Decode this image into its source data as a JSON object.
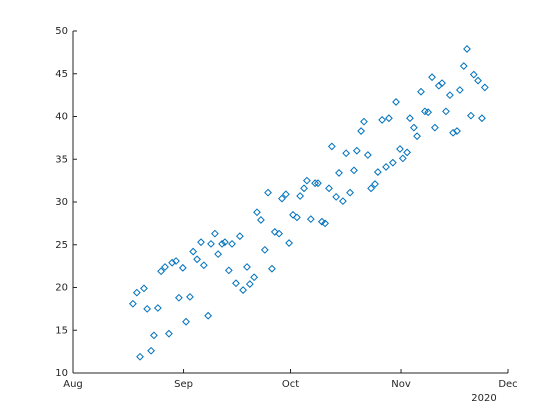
{
  "chart_data": {
    "type": "scatter",
    "x_secondary_label": "2020",
    "xlim": [
      0,
      122
    ],
    "xticks": [
      {
        "value": 0,
        "label": "Aug"
      },
      {
        "value": 31,
        "label": "Sep"
      },
      {
        "value": 61,
        "label": "Oct"
      },
      {
        "value": 92,
        "label": "Nov"
      },
      {
        "value": 122,
        "label": "Dec"
      }
    ],
    "ylim": [
      10,
      50
    ],
    "yticks": [
      10,
      15,
      20,
      25,
      30,
      35,
      40,
      45,
      50
    ],
    "color": "#0072bd",
    "marker": "diamond",
    "x": [
      16.8,
      17.9,
      18.8,
      19.9,
      20.8,
      21.9,
      22.7,
      23.8,
      24.7,
      25.8,
      26.9,
      27.8,
      28.9,
      29.7,
      30.8,
      31.7,
      32.8,
      33.7,
      34.8,
      35.9,
      36.7,
      37.9,
      38.7,
      39.8,
      40.7,
      41.8,
      42.6,
      43.7,
      44.6,
      45.7,
      46.8,
      47.7,
      48.8,
      49.6,
      50.8,
      51.6,
      52.7,
      53.8,
      54.7,
      55.8,
      56.6,
      57.8,
      58.6,
      59.7,
      60.6,
      61.7,
      62.8,
      63.7,
      64.8,
      65.6,
      66.7,
      67.9,
      68.7,
      69.8,
      70.7,
      71.8,
      72.6,
      73.8,
      74.6,
      75.7,
      76.6,
      77.7,
      78.8,
      79.6,
      80.8,
      81.6,
      82.7,
      83.6,
      84.7,
      85.5,
      86.7,
      87.8,
      88.6,
      89.7,
      90.6,
      91.7,
      92.5,
      93.7,
      94.5,
      95.6,
      96.5,
      97.6,
      98.7,
      99.6,
      100.7,
      101.5,
      102.6,
      103.5,
      104.6,
      105.7,
      106.6,
      107.7,
      108.5,
      109.6,
      110.5,
      111.6,
      112.4,
      113.6,
      114.7,
      115.5
    ],
    "y": [
      18.1,
      19.4,
      11.9,
      19.9,
      17.5,
      12.6,
      14.4,
      17.6,
      21.9,
      22.4,
      14.6,
      22.9,
      23.1,
      18.8,
      22.3,
      16.0,
      18.9,
      24.2,
      23.3,
      25.3,
      22.6,
      16.7,
      25.1,
      26.3,
      23.9,
      25.1,
      25.3,
      22.0,
      25.1,
      20.5,
      26.0,
      19.7,
      22.4,
      20.4,
      21.2,
      28.8,
      27.9,
      24.4,
      31.1,
      22.2,
      26.5,
      26.3,
      30.4,
      30.9,
      25.2,
      28.5,
      28.2,
      30.7,
      31.6,
      32.5,
      28.0,
      32.2,
      32.2,
      27.7,
      27.5,
      31.6,
      36.5,
      30.6,
      33.4,
      30.1,
      35.7,
      31.1,
      33.7,
      36.0,
      38.3,
      39.4,
      35.5,
      31.6,
      32.1,
      33.5,
      39.6,
      34.1,
      39.8,
      34.6,
      41.7,
      36.2,
      35.1,
      35.8,
      39.8,
      38.7,
      37.7,
      42.9,
      40.6,
      40.5,
      44.6,
      38.7,
      43.6,
      43.9,
      40.6,
      42.5,
      38.1,
      38.3,
      43.1,
      45.9,
      47.9,
      40.1,
      44.9,
      44.2,
      39.8,
      43.4
    ]
  }
}
